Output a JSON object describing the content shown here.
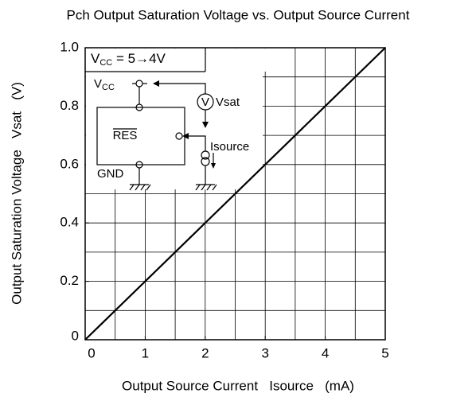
{
  "chart_data": {
    "type": "line",
    "title": "Pch Output Saturation Voltage vs. Output Source Current",
    "x_label": "Output Source Current   Isource   (mA)",
    "y_label": "Output Saturation Voltage   Vsat   (V)",
    "x": [
      0,
      5
    ],
    "series": [
      {
        "name": "Vsat",
        "color": "#000000",
        "values": [
          0,
          1
        ]
      }
    ],
    "xlim": [
      0,
      5
    ],
    "ylim": [
      0,
      1
    ],
    "xticks": [
      0,
      1,
      2,
      3,
      4,
      5
    ],
    "yticks": [
      0,
      0.2,
      0.4,
      0.6,
      0.8,
      {
        "value": 1,
        "label": "1.0"
      }
    ],
    "grid": true,
    "xgrid": [
      0.5,
      1,
      1.5,
      2,
      2.5,
      3,
      3.5,
      4,
      4.5
    ],
    "ygrid": [
      0.1,
      0.2,
      0.3,
      0.4,
      0.5,
      0.6,
      0.7,
      0.8,
      0.9
    ],
    "annotations": {
      "condition_v": "V",
      "condition_sub": "CC",
      "condition_rest": " = 5→4V",
      "vcc_v": "V",
      "vcc_sub": "CC",
      "meter": "V",
      "vsat": "Vsat",
      "res": "RES",
      "gnd": "GND",
      "isource": "Isource"
    }
  }
}
